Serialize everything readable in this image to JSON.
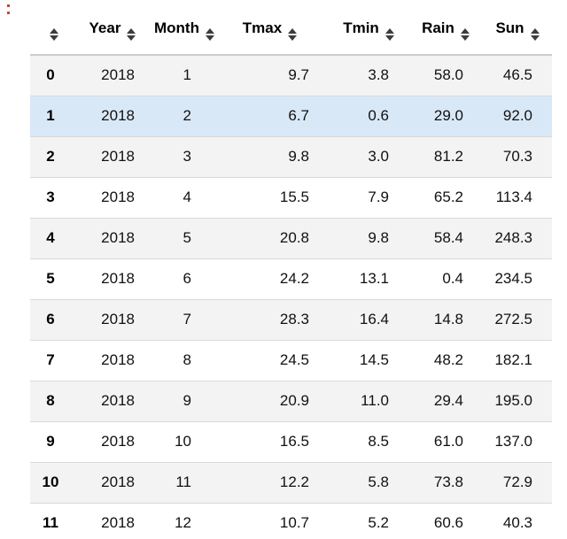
{
  "prompt": {
    "colon": ":"
  },
  "icons": {
    "sort": "triangle-up-down-sort-glyph"
  },
  "colors": {
    "prompt_accent": "#b8472f",
    "row_stripe": "#f3f3f3",
    "row_highlight": "#d9e8f7",
    "row_border": "#d9d9d9",
    "sort_icon": "#3c3c3c",
    "header_text": "#000000"
  },
  "table": {
    "columns": [
      {
        "key": "index",
        "label": ""
      },
      {
        "key": "year",
        "label": "Year"
      },
      {
        "key": "month",
        "label": "Month"
      },
      {
        "key": "tmax",
        "label": "Tmax"
      },
      {
        "key": "tmin",
        "label": "Tmin"
      },
      {
        "key": "rain",
        "label": "Rain"
      },
      {
        "key": "sun",
        "label": "Sun"
      }
    ],
    "highlighted_row_index": 1,
    "rows": [
      [
        "0",
        "2018",
        "1",
        "9.7",
        "3.8",
        "58.0",
        "46.5"
      ],
      [
        "1",
        "2018",
        "2",
        "6.7",
        "0.6",
        "29.0",
        "92.0"
      ],
      [
        "2",
        "2018",
        "3",
        "9.8",
        "3.0",
        "81.2",
        "70.3"
      ],
      [
        "3",
        "2018",
        "4",
        "15.5",
        "7.9",
        "65.2",
        "113.4"
      ],
      [
        "4",
        "2018",
        "5",
        "20.8",
        "9.8",
        "58.4",
        "248.3"
      ],
      [
        "5",
        "2018",
        "6",
        "24.2",
        "13.1",
        "0.4",
        "234.5"
      ],
      [
        "6",
        "2018",
        "7",
        "28.3",
        "16.4",
        "14.8",
        "272.5"
      ],
      [
        "7",
        "2018",
        "8",
        "24.5",
        "14.5",
        "48.2",
        "182.1"
      ],
      [
        "8",
        "2018",
        "9",
        "20.9",
        "11.0",
        "29.4",
        "195.0"
      ],
      [
        "9",
        "2018",
        "10",
        "16.5",
        "8.5",
        "61.0",
        "137.0"
      ],
      [
        "10",
        "2018",
        "11",
        "12.2",
        "5.8",
        "73.8",
        "72.9"
      ],
      [
        "11",
        "2018",
        "12",
        "10.7",
        "5.2",
        "60.6",
        "40.3"
      ]
    ]
  }
}
